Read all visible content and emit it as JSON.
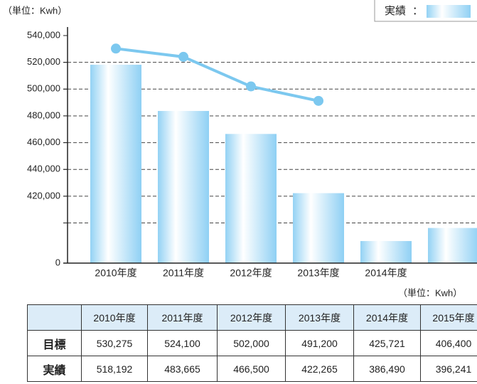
{
  "chart_data": {
    "type": "bar",
    "unit": "（単位：Kwh）",
    "categories": [
      "2010年度",
      "2011年度",
      "2012年度",
      "2013年度",
      "2014年度",
      "2015年度"
    ],
    "series": [
      {
        "name": "実績",
        "type": "bar",
        "color": "#93d2f4",
        "values": [
          518192,
          483665,
          466500,
          422265,
          386490,
          396241
        ]
      },
      {
        "type": "line",
        "color": "#7cc8ef",
        "values": [
          530275,
          524100,
          502000,
          491200,
          null,
          null
        ]
      }
    ],
    "ylim": [
      0,
      540000
    ],
    "ybreak": [
      0,
      370000
    ],
    "yticks": [
      0,
      {
        "value": 420000,
        "label": "420,000"
      },
      {
        "value": 440000,
        "label": "440,000"
      },
      {
        "value": 460000,
        "label": "460,000"
      },
      {
        "value": 480000,
        "label": "480,000"
      },
      {
        "value": 500000,
        "label": "500,000"
      },
      {
        "value": 520000,
        "label": "520,000"
      },
      {
        "value": 540000,
        "label": "540,000"
      }
    ],
    "grid_values": [
      400000,
      420000,
      440000,
      460000,
      480000,
      500000,
      520000
    ]
  },
  "table": {
    "unit": "（単位：Kwh）",
    "header": [
      "",
      "2010年度",
      "2011年度",
      "2012年度",
      "2013年度",
      "2014年度",
      "2015年度"
    ],
    "rows": [
      [
        "目標",
        "530,275",
        "524,100",
        "502,000",
        "491,200",
        "425,721",
        "406,400"
      ],
      [
        "実績",
        "518,192",
        "483,665",
        "466,500",
        "422,265",
        "386,490",
        "396,241"
      ]
    ]
  }
}
